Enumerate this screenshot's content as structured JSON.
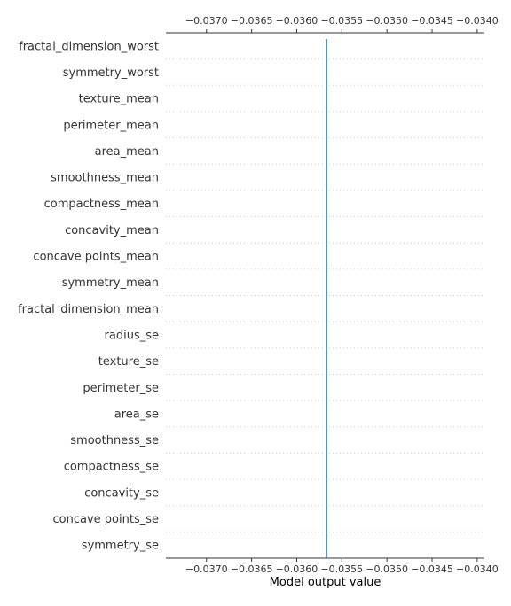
{
  "chart_data": {
    "type": "line",
    "xlabel": "Model output value",
    "xlim": [
      -0.03745,
      -0.03392
    ],
    "x_ticks": [
      -0.037,
      -0.0365,
      -0.036,
      -0.0355,
      -0.035,
      -0.0345,
      -0.034
    ],
    "x_tick_labels": [
      "−0.0370",
      "−0.0365",
      "−0.0360",
      "−0.0355",
      "−0.0350",
      "−0.0345",
      "−0.0340"
    ],
    "features": [
      "fractal_dimension_worst",
      "symmetry_worst",
      "texture_mean",
      "perimeter_mean",
      "area_mean",
      "smoothness_mean",
      "compactness_mean",
      "concavity_mean",
      "concave points_mean",
      "symmetry_mean",
      "fractal_dimension_mean",
      "radius_se",
      "texture_se",
      "perimeter_se",
      "area_se",
      "smoothness_se",
      "compactness_se",
      "concavity_se",
      "concave points_se",
      "symmetry_se"
    ],
    "series": [
      {
        "values": [
          -0.03567,
          -0.03567,
          -0.03567,
          -0.03567,
          -0.03567,
          -0.03567,
          -0.03567,
          -0.03567,
          -0.03567,
          -0.03567,
          -0.03567,
          -0.03567,
          -0.03567,
          -0.03567,
          -0.03567,
          -0.03567,
          -0.03567,
          -0.03567,
          -0.03567,
          -0.03567,
          -0.03567
        ]
      }
    ],
    "grid": "horizontal-dotted",
    "line_color": "#1f77b4",
    "grid_color": "#cccccc",
    "axis_color": "#333333"
  }
}
